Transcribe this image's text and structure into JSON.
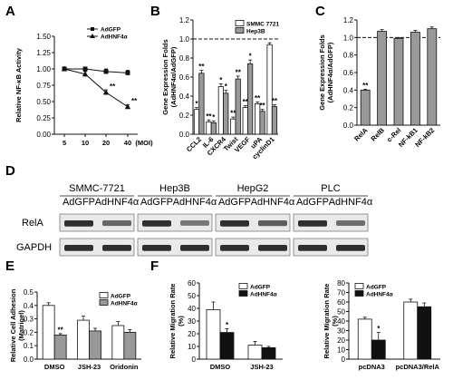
{
  "panel_labels": [
    "A",
    "B",
    "C",
    "D",
    "E",
    "F"
  ],
  "chart_data": [
    {
      "id": "A",
      "type": "line",
      "ylabel": "Relative NF-κB Activity",
      "xlabel": "(MOI)",
      "categories": [
        "5",
        "10",
        "20",
        "40"
      ],
      "ylim": [
        0,
        1.5
      ],
      "yticks": [
        "0.00",
        "0.25",
        "0.50",
        "0.75",
        "1.00",
        "1.25",
        "1.50"
      ],
      "legend_position": "top-right",
      "series": [
        {
          "name": "AdGFP",
          "marker": "square",
          "values": [
            1.0,
            1.0,
            0.96,
            0.94
          ],
          "errors": [
            0.03,
            0.03,
            0.04,
            0.04
          ],
          "stars": [
            "",
            "",
            "",
            ""
          ]
        },
        {
          "name": "AdHNF4α",
          "marker": "triangle",
          "values": [
            1.0,
            0.92,
            0.64,
            0.42
          ],
          "errors": [
            0.03,
            0.04,
            0.04,
            0.03
          ],
          "stars": [
            "",
            "",
            "**",
            "**"
          ]
        }
      ]
    },
    {
      "id": "B",
      "type": "bar",
      "ylabel": "Gene Expression Folds (AdHNF4α/AdGFP)",
      "categories": [
        "CCL2",
        "IL-6",
        "CXCR4",
        "Twist",
        "VEGF",
        "uPA",
        "cyclinD1"
      ],
      "ylim": [
        0,
        1.2
      ],
      "yticks": [
        "0.0",
        "0.2",
        "0.4",
        "0.6",
        "0.8",
        "1.0",
        "1.2"
      ],
      "reference_line": 1.0,
      "legend_position": "top-right",
      "series": [
        {
          "name": "SMMC 7721",
          "color": "#ffffff",
          "values": [
            0.26,
            0.13,
            0.5,
            0.16,
            0.28,
            0.32,
            0.94
          ],
          "errors": [
            0.02,
            0.02,
            0.03,
            0.02,
            0.02,
            0.02,
            0.02
          ],
          "stars": [
            "*",
            "**",
            "*",
            "**",
            "**",
            "**",
            ""
          ]
        },
        {
          "name": "Hep3B",
          "color": "#999999",
          "values": [
            0.64,
            0.12,
            0.43,
            0.58,
            0.74,
            0.24,
            0.29
          ],
          "errors": [
            0.03,
            0.02,
            0.03,
            0.03,
            0.04,
            0.02,
            0.02
          ],
          "stars": [
            "**",
            "*",
            "*",
            "**",
            "*",
            "**",
            "**"
          ]
        }
      ]
    },
    {
      "id": "C",
      "type": "bar",
      "ylabel": "Gene Expression Folds (AdHNF4α/AdGFP)",
      "categories": [
        "RelA",
        "RelB",
        "c-Rel",
        "NF-kB1",
        "NF-kB2"
      ],
      "ylim": [
        0,
        1.2
      ],
      "yticks": [
        "0.0",
        "0.2",
        "0.4",
        "0.6",
        "0.8",
        "1.0",
        "1.2"
      ],
      "reference_line": 1.0,
      "series": [
        {
          "name": "",
          "color": "#999999",
          "values": [
            0.4,
            1.07,
            0.99,
            1.06,
            1.1
          ],
          "errors": [
            0.01,
            0.02,
            0.01,
            0.02,
            0.02
          ],
          "stars": [
            "**",
            "",
            "",
            "",
            ""
          ]
        }
      ]
    },
    {
      "id": "E",
      "type": "bar",
      "ylabel": "Relative Cell Adhesion (Matrigel)",
      "categories": [
        "DMSO",
        "JSH-23",
        "Oridonin"
      ],
      "ylim": [
        0,
        0.5
      ],
      "yticks": [
        "0.0",
        "0.1",
        "0.2",
        "0.3",
        "0.4",
        "0.5"
      ],
      "legend_position": "top-right",
      "series": [
        {
          "name": "AdGFP",
          "color": "#ffffff",
          "values": [
            0.4,
            0.29,
            0.25
          ],
          "errors": [
            0.02,
            0.03,
            0.03
          ],
          "stars": [
            "",
            "",
            ""
          ]
        },
        {
          "name": "AdHNF4α",
          "color": "#999999",
          "values": [
            0.18,
            0.21,
            0.2
          ],
          "errors": [
            0.01,
            0.02,
            0.02
          ],
          "stars": [
            "**",
            "",
            ""
          ]
        }
      ]
    },
    {
      "id": "F1",
      "type": "bar",
      "ylabel": "Relative Migration Rate (%)",
      "categories": [
        "DMSO",
        "JSH-23"
      ],
      "ylim": [
        0,
        60
      ],
      "yticks": [
        "0",
        "10",
        "20",
        "30",
        "40",
        "50",
        "60"
      ],
      "legend_position": "top-right",
      "series": [
        {
          "name": "AdGFP",
          "color": "#ffffff",
          "values": [
            39,
            11
          ],
          "errors": [
            6,
            3
          ],
          "stars": [
            "",
            ""
          ]
        },
        {
          "name": "AdHNF4α",
          "color": "#111111",
          "values": [
            21,
            9
          ],
          "errors": [
            3,
            1
          ],
          "stars": [
            "*",
            ""
          ]
        }
      ]
    },
    {
      "id": "F2",
      "type": "bar",
      "ylabel": "Relative Migration Rate (%)",
      "categories": [
        "pcDNA3",
        "pcDNA3/RelA"
      ],
      "ylim": [
        0,
        80
      ],
      "yticks": [
        "0",
        "10",
        "20",
        "30",
        "40",
        "50",
        "60",
        "70",
        "80"
      ],
      "legend_position": "top-left",
      "series": [
        {
          "name": "AdGFP",
          "color": "#ffffff",
          "values": [
            42,
            60
          ],
          "errors": [
            2,
            3
          ],
          "stars": [
            "",
            ""
          ]
        },
        {
          "name": "AdHNF4α",
          "color": "#111111",
          "values": [
            20,
            55
          ],
          "errors": [
            8,
            4
          ],
          "stars": [
            "*",
            ""
          ]
        }
      ]
    }
  ],
  "blot": {
    "cell_lines": [
      {
        "name": "SMMC-7721",
        "lanes": [
          "AdGFP",
          "AdHNF4α"
        ],
        "rela": [
          0.85,
          0.55
        ],
        "gapdh": [
          0.85,
          0.85
        ]
      },
      {
        "name": "Hep3B",
        "lanes": [
          "AdGFP",
          "AdHNF4α"
        ],
        "rela": [
          0.85,
          0.45
        ],
        "gapdh": [
          0.85,
          0.85
        ]
      },
      {
        "name": "HepG2",
        "lanes": [
          "AdGFP",
          "AdHNF4α"
        ],
        "rela": [
          0.85,
          0.6
        ],
        "gapdh": [
          0.85,
          0.85
        ]
      },
      {
        "name": "PLC",
        "lanes": [
          "AdGFP",
          "AdHNF4α"
        ],
        "rela": [
          0.85,
          0.5
        ],
        "gapdh": [
          0.85,
          0.85
        ]
      }
    ],
    "rows": [
      "RelA",
      "GAPDH"
    ]
  }
}
